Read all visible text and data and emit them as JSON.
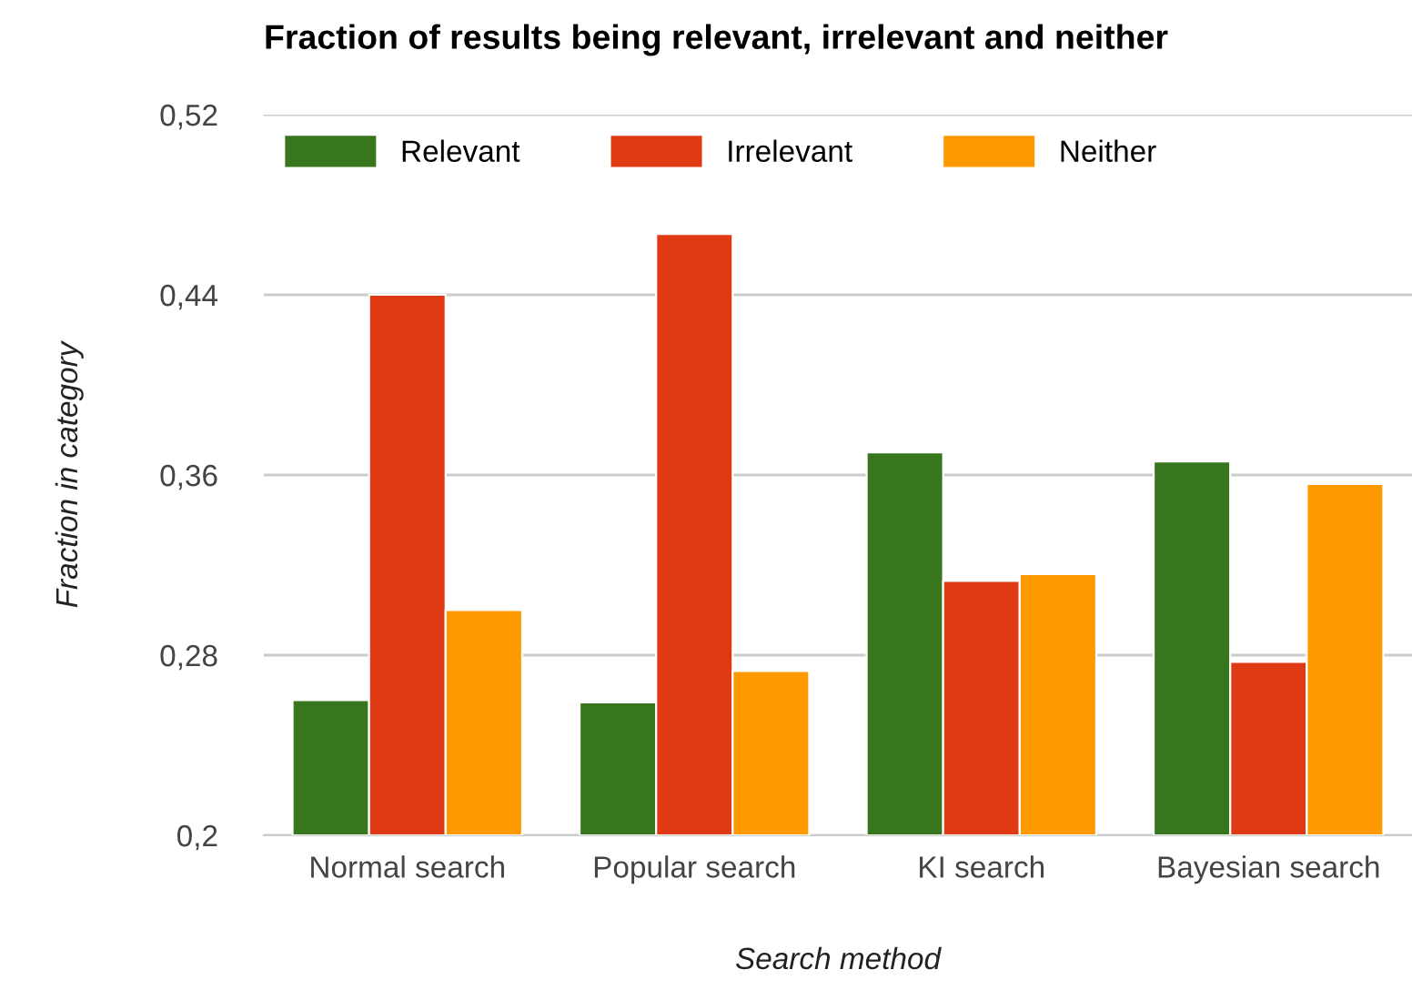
{
  "chart_data": {
    "type": "bar",
    "title": "Fraction of results being relevant, irrelevant and neither",
    "xlabel": "Search method",
    "ylabel": "Fraction in category",
    "categories": [
      "Normal search",
      "Popular search",
      "KI search",
      "Bayesian search"
    ],
    "series": [
      {
        "name": "Relevant",
        "color": "#38761d",
        "values": [
          0.26,
          0.259,
          0.37,
          0.366
        ]
      },
      {
        "name": "Irrelevant",
        "color": "#e03a14",
        "values": [
          0.44,
          0.467,
          0.313,
          0.277
        ]
      },
      {
        "name": "Neither",
        "color": "#ff9900",
        "values": [
          0.3,
          0.273,
          0.316,
          0.356
        ]
      }
    ],
    "ylim": [
      0.2,
      0.52
    ],
    "yticks": [
      {
        "value": 0.2,
        "label": "0,2"
      },
      {
        "value": 0.28,
        "label": "0,28"
      },
      {
        "value": 0.36,
        "label": "0,36"
      },
      {
        "value": 0.44,
        "label": "0,44"
      },
      {
        "value": 0.52,
        "label": "0,52"
      }
    ],
    "grid": "y",
    "legend": "top left"
  }
}
